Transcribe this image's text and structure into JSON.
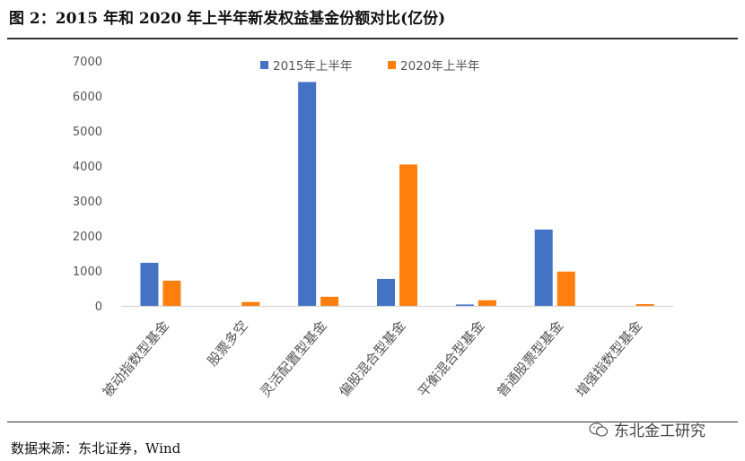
{
  "title": "图 2：2015 年和 2020 年上半年新发权益基金份额对比(亿份)",
  "source": "数据来源：东北证券，Wind",
  "watermark": {
    "text": "东北金工研究",
    "icon": "wechat-icon"
  },
  "chart_data": {
    "type": "bar",
    "categories": [
      "被动指数型基金",
      "股票多空",
      "灵活配置型基金",
      "偏股混合型基金",
      "平衡混合型基金",
      "普通股票型基金",
      "增强指数型基金"
    ],
    "series": [
      {
        "name": "2015年上半年",
        "color": "#4472c4",
        "values": [
          1230,
          0,
          6400,
          770,
          40,
          2180,
          0
        ]
      },
      {
        "name": "2020年上半年",
        "color": "#ff7f0e",
        "values": [
          720,
          110,
          260,
          4040,
          160,
          980,
          50
        ]
      }
    ],
    "ylim": [
      0,
      7000
    ],
    "yticks": [
      "0",
      "1000",
      "2000",
      "3000",
      "4000",
      "5000",
      "6000",
      "7000"
    ],
    "legend": "top-center",
    "grid": false
  }
}
